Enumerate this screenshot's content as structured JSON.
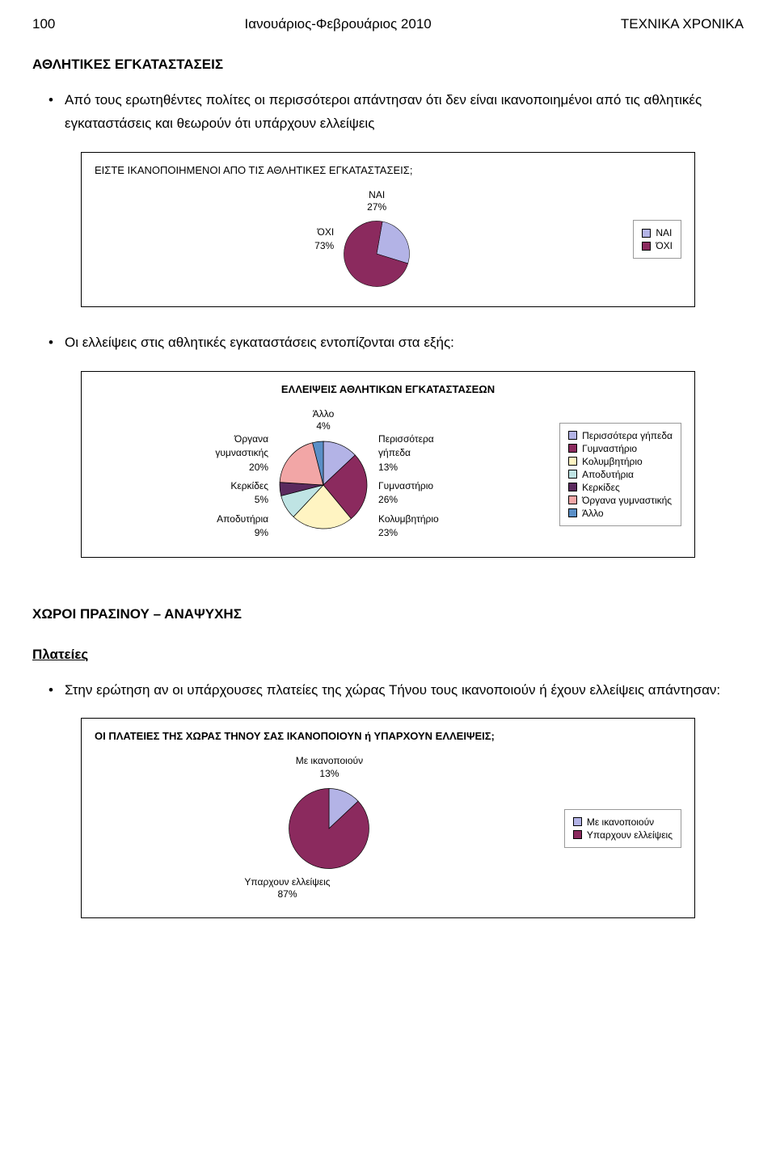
{
  "header": {
    "page_num": "100",
    "center": "Ιανουάριος-Φεβρουάριος 2010",
    "right": "ΤΕΧΝΙΚΑ ΧΡΟΝΙΚΑ"
  },
  "section1_title": "ΑΘΛΗΤΙΚΕΣ ΕΓΚΑΤΑΣΤΑΣΕΙΣ",
  "bullet1": "Από τους ερωτηθέντες πολίτες οι περισσότεροι  απάντησαν ότι δεν είναι ικανοποιημένοι από τις αθλητικές εγκαταστάσεις και θεωρούν ότι υπάρχουν ελλείψεις",
  "chart1": {
    "type": "pie",
    "title": "ΕΙΣΤΕ ΙΚΑΝΟΠΟΙΗΜΕΝΟΙ ΑΠΟ ΤΙΣ ΑΘΛΗΤΙΚΕΣ ΕΓΚΑΤΑΣΤΑΣΕΙΣ;",
    "slices": [
      {
        "label": "ΝΑΙ",
        "value": 27,
        "pct": "27%",
        "color": "#b3b3e6"
      },
      {
        "label": "ΌΧΙ",
        "value": 73,
        "pct": "73%",
        "color": "#8b2a5e"
      }
    ],
    "label_nai": "ΝΑΙ",
    "label_nai_pct": "27%",
    "label_oxi": "ΌΧΙ",
    "label_oxi_pct": "73%",
    "legend": [
      {
        "label": "ΝΑΙ",
        "color": "#b3b3e6"
      },
      {
        "label": "ΌΧΙ",
        "color": "#8b2a5e"
      }
    ]
  },
  "bullet2": "Οι ελλείψεις στις αθλητικές εγκαταστάσεις εντοπίζονται στα εξής:",
  "chart2": {
    "type": "pie",
    "title": "ΕΛΛΕΙΨΕΙΣ ΑΘΛΗΤΙΚΩΝ ΕΓΚΑΤΑΣΤΑΣΕΩΝ",
    "slices": [
      {
        "label": "Περισσότερα γήπεδα",
        "value": 13,
        "color": "#b3b3e6"
      },
      {
        "label": "Γυμναστήριο",
        "value": 26,
        "color": "#8b2a5e"
      },
      {
        "label": "Κολυμβητήριο",
        "value": 23,
        "color": "#fff4c2"
      },
      {
        "label": "Αποδυτήρια",
        "value": 9,
        "color": "#bfe4e4"
      },
      {
        "label": "Κερκίδες",
        "value": 5,
        "color": "#5b2a5e"
      },
      {
        "label": "Όργανα γυμναστικής",
        "value": 20,
        "color": "#f2a6a6"
      },
      {
        "label": "Άλλο",
        "value": 4,
        "color": "#5a8fc7"
      }
    ],
    "left_labels": {
      "l1a": "Όργανα",
      "l1b": "γυμναστικής",
      "l1c": "20%",
      "l2a": "Κερκίδες",
      "l2b": "5%",
      "l3a": "Αποδυτήρια",
      "l3b": "9%"
    },
    "top_labels": {
      "t1a": "Άλλο",
      "t1b": "4%"
    },
    "right_labels": {
      "r1a": "Περισσότερα",
      "r1b": "γήπεδα",
      "r1c": "13%",
      "r2a": "Γυμναστήριο",
      "r2b": "26%",
      "r3a": "Κολυμβητήριο",
      "r3b": "23%"
    },
    "legend": [
      {
        "label": "Περισσότερα γήπεδα",
        "color": "#b3b3e6"
      },
      {
        "label": "Γυμναστήριο",
        "color": "#8b2a5e"
      },
      {
        "label": "Κολυμβητήριο",
        "color": "#fff4c2"
      },
      {
        "label": "Αποδυτήρια",
        "color": "#bfe4e4"
      },
      {
        "label": "Κερκίδες",
        "color": "#5b2a5e"
      },
      {
        "label": "Όργανα γυμναστικής",
        "color": "#f2a6a6"
      },
      {
        "label": "Άλλο",
        "color": "#5a8fc7"
      }
    ]
  },
  "section2_title": "ΧΩΡΟΙ ΠΡΑΣΙΝΟΥ – ΑΝΑΨΥΧΗΣ",
  "subsection": "Πλατείες",
  "bullet3": "Στην ερώτηση αν οι υπάρχουσες πλατείες της χώρας Τήνου τους ικανοποιούν ή έχουν ελλείψεις απάντησαν:",
  "chart3": {
    "type": "pie",
    "title": "ΟΙ ΠΛΑΤΕΙΕΣ ΤΗΣ ΧΩΡΑΣ ΤΗΝΟΥ ΣΑΣ ΙΚΑΝΟΠΟΙΟΥΝ ή ΥΠΑΡΧΟΥΝ ΕΛΛΕΙΨΕΙΣ;",
    "slices": [
      {
        "label": "Με ικανοποιούν",
        "value": 13,
        "color": "#b3b3e6"
      },
      {
        "label": "Υπαρχουν ελλείψεις",
        "value": 87,
        "color": "#8b2a5e"
      }
    ],
    "label_top": "Με ικανοποιούν",
    "label_top_pct": "13%",
    "label_bot": "Υπαρχουν ελλείψεις",
    "label_bot_pct": "87%",
    "legend": [
      {
        "label": "Με ικανοποιούν",
        "color": "#b3b3e6"
      },
      {
        "label": "Υπαρχουν ελλείψεις",
        "color": "#8b2a5e"
      }
    ]
  }
}
